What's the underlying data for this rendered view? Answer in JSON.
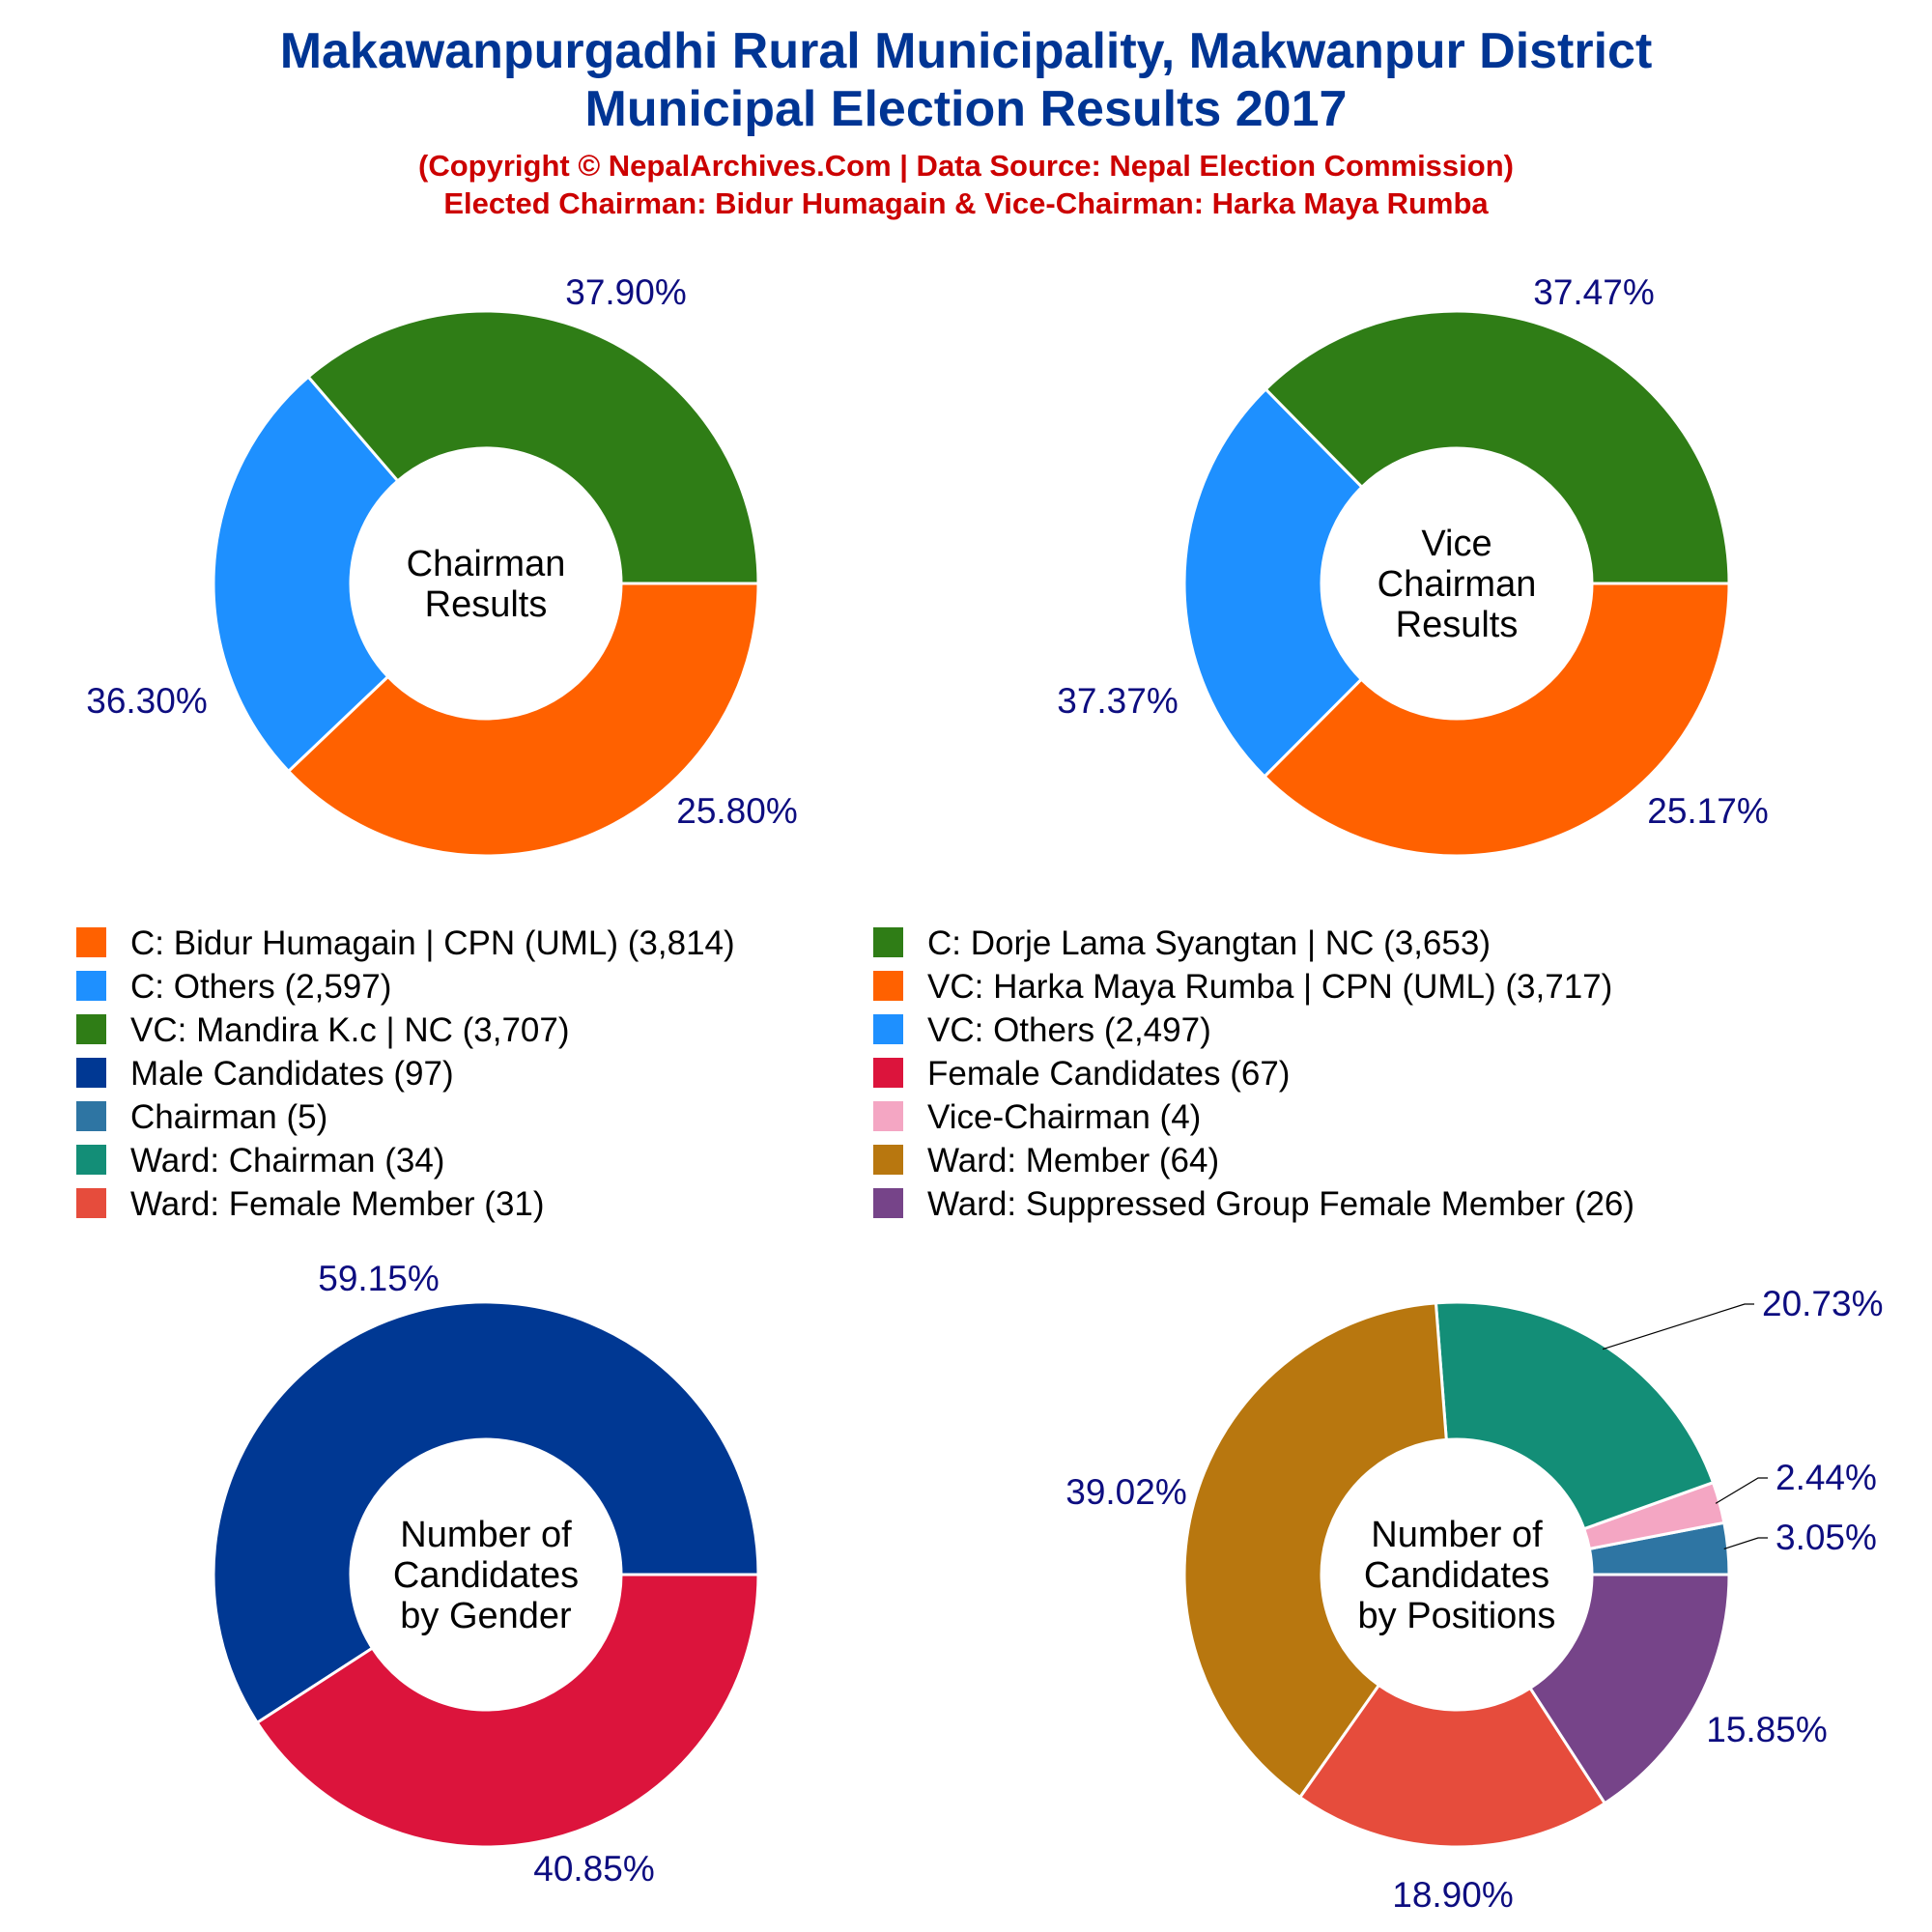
{
  "title_lines": [
    "Makawanpurgadhi Rural Municipality, Makwanpur District",
    "Municipal Election Results 2017"
  ],
  "subtitle_lines": [
    "(Copyright © NepalArchives.Com | Data Source: Nepal Election Commission)",
    "Elected Chairman: Bidur Humagain & Vice-Chairman: Harka Maya Rumba"
  ],
  "colors": {
    "title": "#003594",
    "subtitle": "#cc0000",
    "percent_label": "#0d0d80"
  },
  "chart_data": [
    {
      "type": "pie",
      "subtype": "donut",
      "center_label": [
        "Chairman",
        "Results"
      ],
      "slices": [
        {
          "label": "C: Bidur Humagain | CPN (UML)",
          "value": 3814,
          "percent_label": "37.90%",
          "color": "#ff6100"
        },
        {
          "label": "C: Others",
          "value": 2597,
          "percent_label": "25.80%",
          "color": "#1e90ff"
        },
        {
          "label": "C: Dorje Lama Syangtan | NC",
          "value": 3653,
          "percent_label": "36.30%",
          "color": "#2f7d16"
        }
      ]
    },
    {
      "type": "pie",
      "subtype": "donut",
      "center_label": [
        "Vice",
        "Chairman",
        "Results"
      ],
      "slices": [
        {
          "label": "VC: Harka Maya Rumba | CPN (UML)",
          "value": 3717,
          "percent_label": "37.47%",
          "color": "#ff6100"
        },
        {
          "label": "VC: Others",
          "value": 2497,
          "percent_label": "25.17%",
          "color": "#1e90ff"
        },
        {
          "label": "VC: Mandira K.c | NC",
          "value": 3707,
          "percent_label": "37.37%",
          "color": "#2f7d16"
        }
      ]
    },
    {
      "type": "pie",
      "subtype": "donut",
      "center_label": [
        "Number of",
        "Candidates",
        "by Gender"
      ],
      "slices": [
        {
          "label": "Male Candidates",
          "value": 97,
          "percent_label": "59.15%",
          "color": "#003893"
        },
        {
          "label": "Female Candidates",
          "value": 67,
          "percent_label": "40.85%",
          "color": "#dc143c"
        }
      ]
    },
    {
      "type": "pie",
      "subtype": "donut",
      "center_label": [
        "Number of",
        "Candidates",
        "by Positions"
      ],
      "slices": [
        {
          "label": "Chairman",
          "value": 5,
          "percent_label": "3.05%",
          "color": "#2e75a3"
        },
        {
          "label": "Vice-Chairman",
          "value": 4,
          "percent_label": "2.44%",
          "color": "#f4a6c3"
        },
        {
          "label": "Ward: Chairman",
          "value": 34,
          "percent_label": "20.73%",
          "color": "#138e77"
        },
        {
          "label": "Ward: Member",
          "value": 64,
          "percent_label": "39.02%",
          "color": "#b8770f"
        },
        {
          "label": "Ward: Female Member",
          "value": 31,
          "percent_label": "18.90%",
          "color": "#e64c3c"
        },
        {
          "label": "Ward: Suppressed Group Female Member",
          "value": 26,
          "percent_label": "15.85%",
          "color": "#764489"
        }
      ]
    }
  ],
  "legend": [
    {
      "text": "C: Bidur Humagain | CPN (UML) (3,814)",
      "color": "#ff6100"
    },
    {
      "text": "C: Dorje Lama Syangtan | NC (3,653)",
      "color": "#2f7d16"
    },
    {
      "text": "C: Others (2,597)",
      "color": "#1e90ff"
    },
    {
      "text": "VC: Harka Maya Rumba | CPN (UML) (3,717)",
      "color": "#ff6100"
    },
    {
      "text": "VC: Mandira K.c | NC (3,707)",
      "color": "#2f7d16"
    },
    {
      "text": "VC: Others (2,497)",
      "color": "#1e90ff"
    },
    {
      "text": "Male Candidates (97)",
      "color": "#003893"
    },
    {
      "text": "Female Candidates (67)",
      "color": "#dc143c"
    },
    {
      "text": "Chairman (5)",
      "color": "#2e75a3"
    },
    {
      "text": "Vice-Chairman (4)",
      "color": "#f4a6c3"
    },
    {
      "text": "Ward: Chairman (34)",
      "color": "#138e77"
    },
    {
      "text": "Ward: Member (64)",
      "color": "#b8770f"
    },
    {
      "text": "Ward: Female Member (31)",
      "color": "#e64c3c"
    },
    {
      "text": "Ward: Suppressed Group Female Member (26)",
      "color": "#764489"
    }
  ]
}
